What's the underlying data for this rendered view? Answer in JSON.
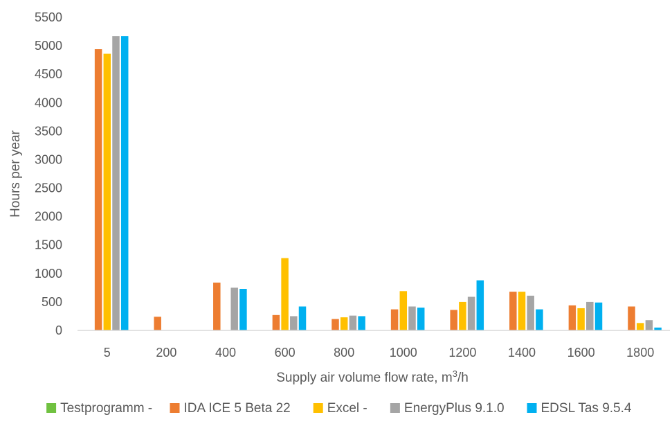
{
  "chart_data": {
    "type": "bar",
    "title": "",
    "xlabel_main": "Supply air volume flow rate, m",
    "xlabel_sup": "3",
    "xlabel_tail": "/h",
    "ylabel": "Hours per year",
    "ylim": [
      0,
      5500
    ],
    "yticks": [
      0,
      500,
      1000,
      1500,
      2000,
      2500,
      3000,
      3500,
      4000,
      4500,
      5000,
      5500
    ],
    "grid": false,
    "legend_position": "bottom",
    "categories": [
      "5",
      "200",
      "400",
      "600",
      "800",
      "1000",
      "1200",
      "1400",
      "1600",
      "1800"
    ],
    "series": [
      {
        "name": "Testprogramm -",
        "color": "#70c140",
        "values": [
          0,
          0,
          0,
          0,
          0,
          0,
          0,
          0,
          0,
          0
        ]
      },
      {
        "name": "IDA ICE 5 Beta 22",
        "color": "#ed7d31",
        "values": [
          4940,
          240,
          840,
          270,
          200,
          370,
          360,
          680,
          440,
          420
        ]
      },
      {
        "name": "Excel -",
        "color": "#ffc000",
        "values": [
          4860,
          0,
          0,
          1270,
          230,
          690,
          500,
          680,
          390,
          130
        ]
      },
      {
        "name": "EnergyPlus 9.1.0",
        "color": "#a5a5a5",
        "values": [
          5170,
          0,
          750,
          250,
          260,
          420,
          590,
          610,
          500,
          180
        ]
      },
      {
        "name": "EDSL Tas 9.5.4",
        "color": "#00b0f0",
        "values": [
          5170,
          0,
          730,
          420,
          250,
          400,
          880,
          370,
          490,
          50
        ]
      }
    ]
  }
}
